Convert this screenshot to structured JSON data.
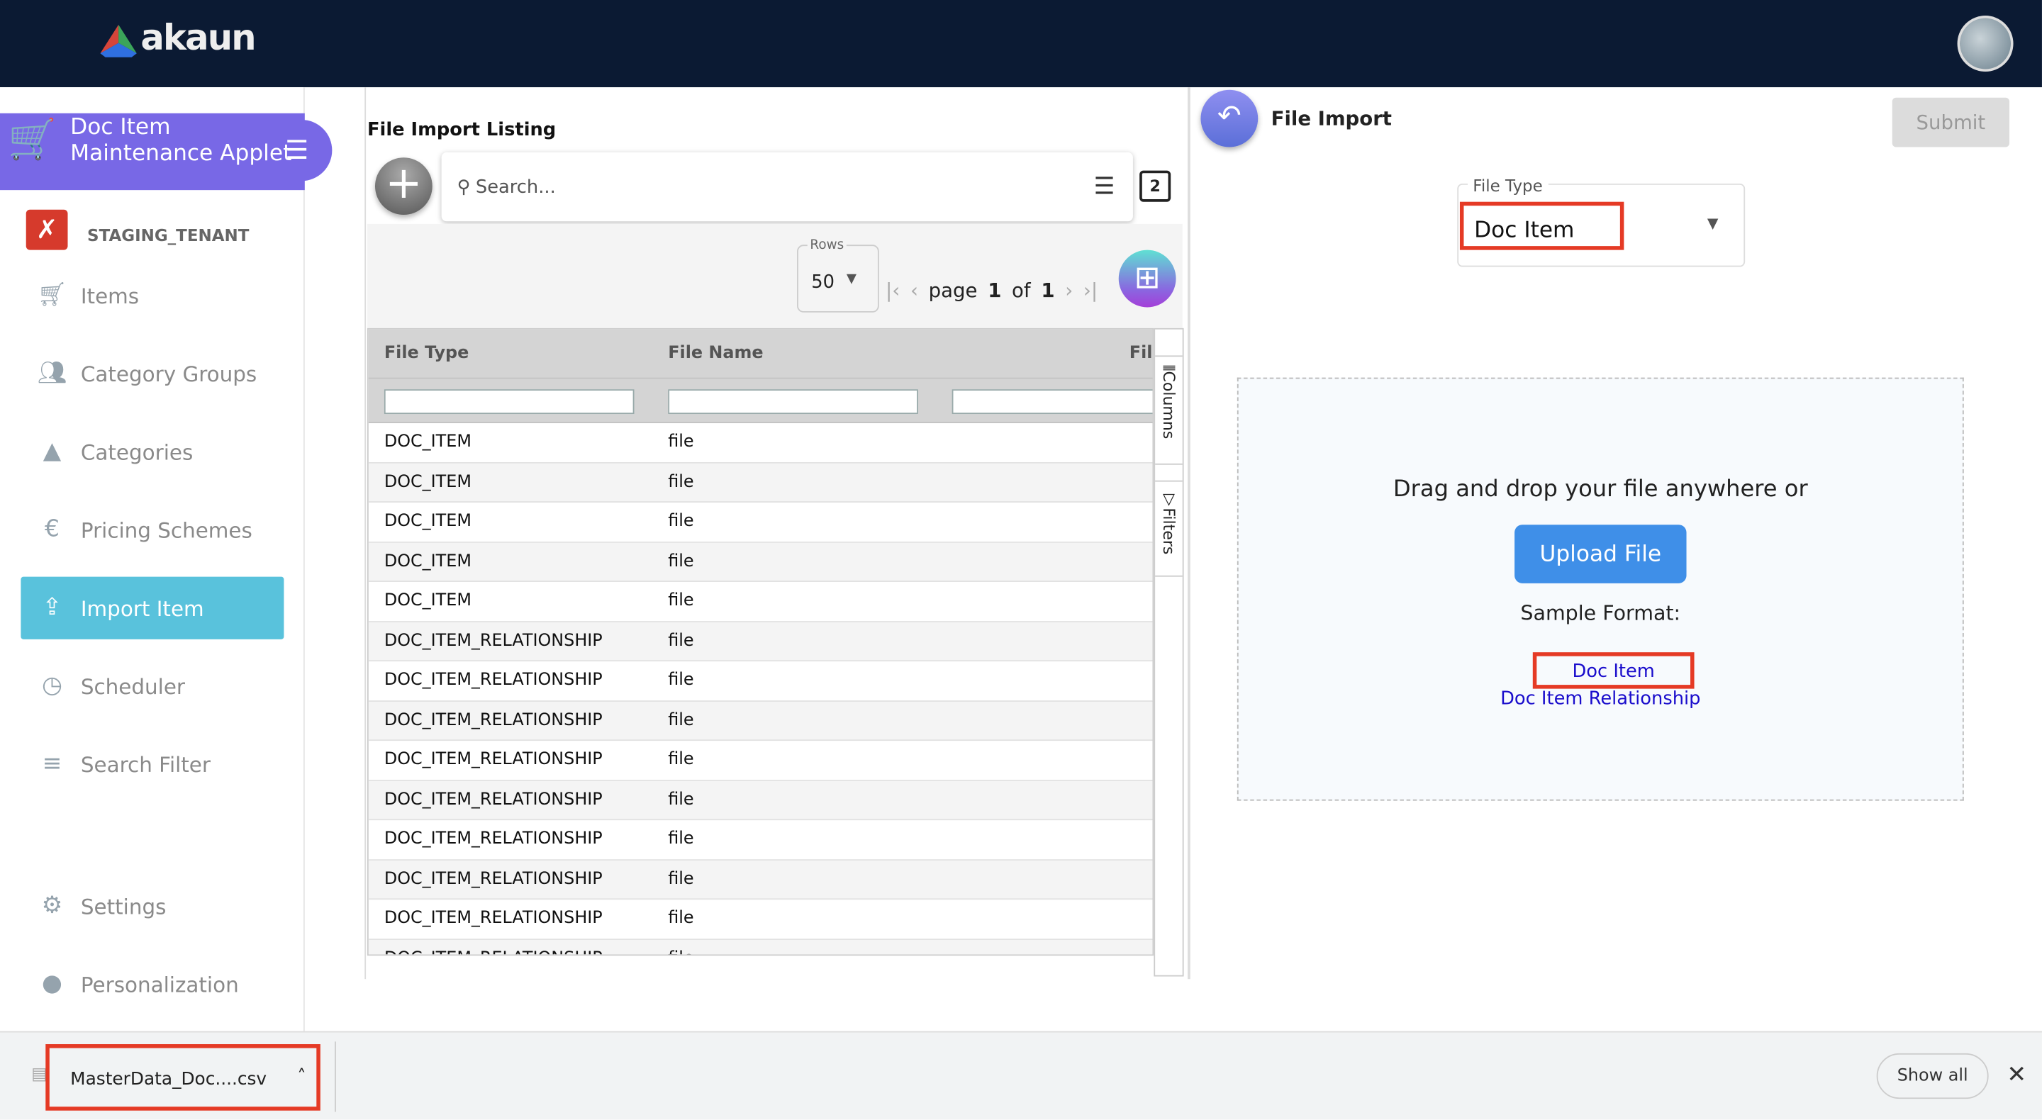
{
  "header": {
    "brand": "akaun",
    "avatar_icon": "user-avatar"
  },
  "sidebar": {
    "applet_title": "Doc Item Maintenance Applet",
    "tenant": "STAGING_TENANT",
    "items": [
      {
        "label": "Items",
        "icon": "cart-icon"
      },
      {
        "label": "Category Groups",
        "icon": "people-icon"
      },
      {
        "label": "Categories",
        "icon": "shapes-icon"
      },
      {
        "label": "Pricing Schemes",
        "icon": "euro-icon"
      },
      {
        "label": "Import Item",
        "icon": "file-upload-icon",
        "active": true
      },
      {
        "label": "Scheduler",
        "icon": "timer-icon"
      },
      {
        "label": "Search Filter",
        "icon": "search-filter-icon"
      },
      {
        "label": "Settings",
        "icon": "gear-icon"
      },
      {
        "label": "Personalization",
        "icon": "person-icon"
      }
    ]
  },
  "listing": {
    "title": "File Import Listing",
    "search_placeholder": "Search...",
    "rows_label": "Rows",
    "rows_value": "50",
    "page_word": "page",
    "page": "1",
    "of_word": "of",
    "total_pages": "1",
    "columns": [
      "File Type",
      "File Name",
      "Fil"
    ],
    "side_tabs": [
      "Columns",
      "Filters"
    ],
    "rows": [
      [
        "DOC_ITEM",
        "file"
      ],
      [
        "DOC_ITEM",
        "file"
      ],
      [
        "DOC_ITEM",
        "file"
      ],
      [
        "DOC_ITEM",
        "file"
      ],
      [
        "DOC_ITEM",
        "file"
      ],
      [
        "DOC_ITEM_RELATIONSHIP",
        "file"
      ],
      [
        "DOC_ITEM_RELATIONSHIP",
        "file"
      ],
      [
        "DOC_ITEM_RELATIONSHIP",
        "file"
      ],
      [
        "DOC_ITEM_RELATIONSHIP",
        "file"
      ],
      [
        "DOC_ITEM_RELATIONSHIP",
        "file"
      ],
      [
        "DOC_ITEM_RELATIONSHIP",
        "file"
      ],
      [
        "DOC_ITEM_RELATIONSHIP",
        "file"
      ],
      [
        "DOC_ITEM_RELATIONSHIP",
        "file"
      ],
      [
        "DOC_ITEM_RELATIONSHIP",
        "file"
      ]
    ]
  },
  "import": {
    "title": "File Import",
    "submit": "Submit",
    "file_type_label": "File Type",
    "file_type_value": "Doc Item",
    "drop_text": "Drag and drop your file anywhere or",
    "upload": "Upload File",
    "sample_label": "Sample Format:",
    "links": [
      "Doc Item",
      "Doc Item Relationship"
    ]
  },
  "downloads": {
    "file": "MasterData_Doc....csv",
    "show_all": "Show all"
  },
  "colors": {
    "topbar": "#0b1a33",
    "applet": "#7868e6",
    "active_nav": "#59c2dc",
    "highlight": "#e53a25",
    "link": "#1a0dcc",
    "upload": "#3f8fe8"
  }
}
